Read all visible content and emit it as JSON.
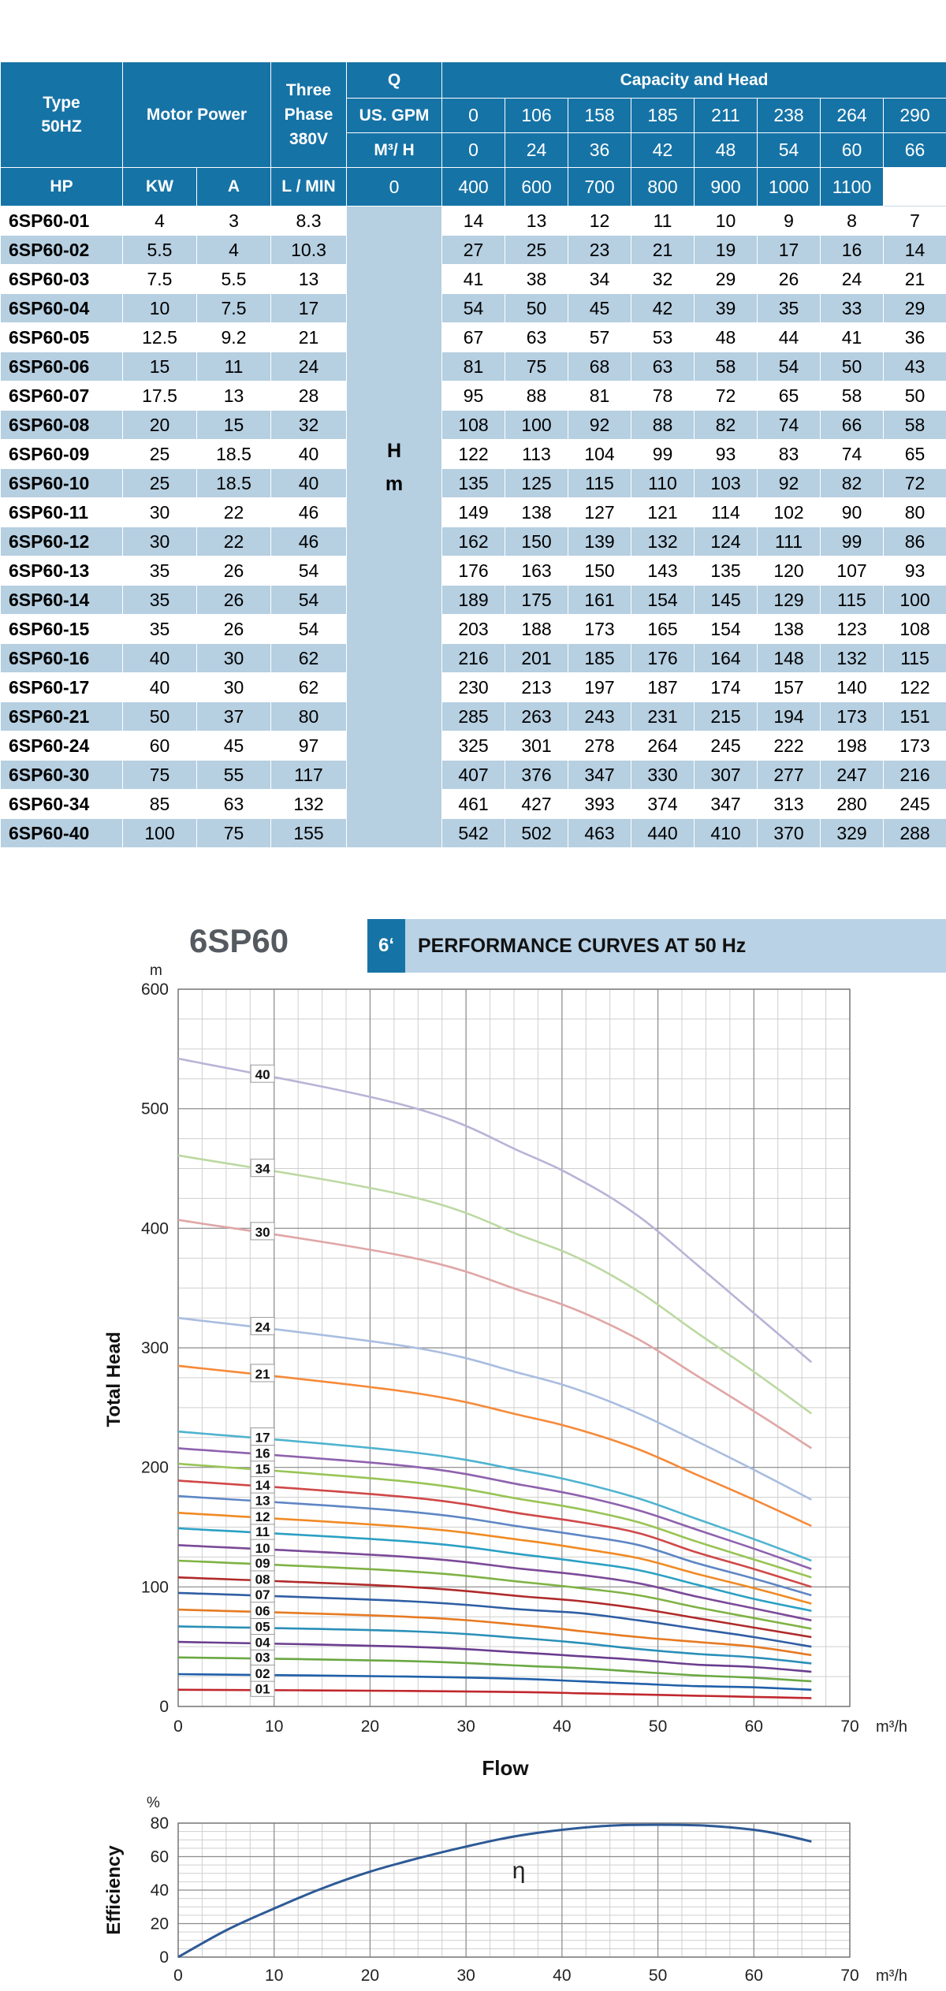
{
  "table": {
    "header": {
      "type": [
        "Type",
        "50HZ"
      ],
      "motor_power": "Motor Power",
      "three_phase": [
        "Three",
        "Phase",
        "380V"
      ],
      "q": "Q",
      "capacity_head": "Capacity and Head",
      "us_gpm_label": "US. GPM",
      "m3h_label": "M³/ H",
      "lmin_label": "L / MIN",
      "hp": "HP",
      "kw": "KW",
      "amp": "A",
      "gpm": [
        "0",
        "106",
        "158",
        "185",
        "211",
        "238",
        "264",
        "290"
      ],
      "m3h": [
        "0",
        "24",
        "36",
        "42",
        "48",
        "54",
        "60",
        "66"
      ],
      "lmin": [
        "0",
        "400",
        "600",
        "700",
        "800",
        "900",
        "1000",
        "1100"
      ]
    },
    "h_label": "H",
    "m_label": "m",
    "rows": [
      {
        "type": "6SP60-01",
        "hp": "4",
        "kw": "3",
        "a": "8.3",
        "head": [
          "14",
          "13",
          "12",
          "11",
          "10",
          "9",
          "8",
          "7"
        ]
      },
      {
        "type": "6SP60-02",
        "hp": "5.5",
        "kw": "4",
        "a": "10.3",
        "head": [
          "27",
          "25",
          "23",
          "21",
          "19",
          "17",
          "16",
          "14"
        ]
      },
      {
        "type": "6SP60-03",
        "hp": "7.5",
        "kw": "5.5",
        "a": "13",
        "head": [
          "41",
          "38",
          "34",
          "32",
          "29",
          "26",
          "24",
          "21"
        ]
      },
      {
        "type": "6SP60-04",
        "hp": "10",
        "kw": "7.5",
        "a": "17",
        "head": [
          "54",
          "50",
          "45",
          "42",
          "39",
          "35",
          "33",
          "29"
        ]
      },
      {
        "type": "6SP60-05",
        "hp": "12.5",
        "kw": "9.2",
        "a": "21",
        "head": [
          "67",
          "63",
          "57",
          "53",
          "48",
          "44",
          "41",
          "36"
        ]
      },
      {
        "type": "6SP60-06",
        "hp": "15",
        "kw": "11",
        "a": "24",
        "head": [
          "81",
          "75",
          "68",
          "63",
          "58",
          "54",
          "50",
          "43"
        ]
      },
      {
        "type": "6SP60-07",
        "hp": "17.5",
        "kw": "13",
        "a": "28",
        "head": [
          "95",
          "88",
          "81",
          "78",
          "72",
          "65",
          "58",
          "50"
        ]
      },
      {
        "type": "6SP60-08",
        "hp": "20",
        "kw": "15",
        "a": "32",
        "head": [
          "108",
          "100",
          "92",
          "88",
          "82",
          "74",
          "66",
          "58"
        ]
      },
      {
        "type": "6SP60-09",
        "hp": "25",
        "kw": "18.5",
        "a": "40",
        "head": [
          "122",
          "113",
          "104",
          "99",
          "93",
          "83",
          "74",
          "65"
        ]
      },
      {
        "type": "6SP60-10",
        "hp": "25",
        "kw": "18.5",
        "a": "40",
        "head": [
          "135",
          "125",
          "115",
          "110",
          "103",
          "92",
          "82",
          "72"
        ]
      },
      {
        "type": "6SP60-11",
        "hp": "30",
        "kw": "22",
        "a": "46",
        "head": [
          "149",
          "138",
          "127",
          "121",
          "114",
          "102",
          "90",
          "80"
        ]
      },
      {
        "type": "6SP60-12",
        "hp": "30",
        "kw": "22",
        "a": "46",
        "head": [
          "162",
          "150",
          "139",
          "132",
          "124",
          "111",
          "99",
          "86"
        ]
      },
      {
        "type": "6SP60-13",
        "hp": "35",
        "kw": "26",
        "a": "54",
        "head": [
          "176",
          "163",
          "150",
          "143",
          "135",
          "120",
          "107",
          "93"
        ]
      },
      {
        "type": "6SP60-14",
        "hp": "35",
        "kw": "26",
        "a": "54",
        "head": [
          "189",
          "175",
          "161",
          "154",
          "145",
          "129",
          "115",
          "100"
        ]
      },
      {
        "type": "6SP60-15",
        "hp": "35",
        "kw": "26",
        "a": "54",
        "head": [
          "203",
          "188",
          "173",
          "165",
          "154",
          "138",
          "123",
          "108"
        ]
      },
      {
        "type": "6SP60-16",
        "hp": "40",
        "kw": "30",
        "a": "62",
        "head": [
          "216",
          "201",
          "185",
          "176",
          "164",
          "148",
          "132",
          "115"
        ]
      },
      {
        "type": "6SP60-17",
        "hp": "40",
        "kw": "30",
        "a": "62",
        "head": [
          "230",
          "213",
          "197",
          "187",
          "174",
          "157",
          "140",
          "122"
        ]
      },
      {
        "type": "6SP60-21",
        "hp": "50",
        "kw": "37",
        "a": "80",
        "head": [
          "285",
          "263",
          "243",
          "231",
          "215",
          "194",
          "173",
          "151"
        ]
      },
      {
        "type": "6SP60-24",
        "hp": "60",
        "kw": "45",
        "a": "97",
        "head": [
          "325",
          "301",
          "278",
          "264",
          "245",
          "222",
          "198",
          "173"
        ]
      },
      {
        "type": "6SP60-30",
        "hp": "75",
        "kw": "55",
        "a": "117",
        "head": [
          "407",
          "376",
          "347",
          "330",
          "307",
          "277",
          "247",
          "216"
        ]
      },
      {
        "type": "6SP60-34",
        "hp": "85",
        "kw": "63",
        "a": "132",
        "head": [
          "461",
          "427",
          "393",
          "374",
          "347",
          "313",
          "280",
          "245"
        ]
      },
      {
        "type": "6SP60-40",
        "hp": "100",
        "kw": "75",
        "a": "155",
        "head": [
          "542",
          "502",
          "463",
          "440",
          "410",
          "370",
          "329",
          "288"
        ]
      }
    ]
  },
  "curves_header": {
    "model": "6SP60",
    "size": "6ʻ",
    "title": "PERFORMANCE CURVES AT 50 Hz"
  },
  "chart_data": [
    {
      "type": "line",
      "ylabel": "Total Head",
      "yunit": "m",
      "xlabel": "Flow",
      "xunit": "m³/h",
      "xlim": [
        0,
        70
      ],
      "ylim": [
        0,
        600
      ],
      "xticks": [
        0,
        10,
        20,
        30,
        40,
        50,
        60,
        70
      ],
      "yticks": [
        0,
        100,
        200,
        300,
        400,
        500,
        600
      ],
      "grid": true,
      "x": [
        0,
        24,
        36,
        42,
        48,
        54,
        60,
        66
      ],
      "series": [
        {
          "name": "01",
          "color": "#c0272d",
          "values": [
            14,
            13,
            12,
            11,
            10,
            9,
            8,
            7
          ]
        },
        {
          "name": "02",
          "color": "#1f5fa8",
          "values": [
            27,
            25,
            23,
            21,
            19,
            17,
            16,
            14
          ]
        },
        {
          "name": "03",
          "color": "#6aa842",
          "values": [
            41,
            38,
            34,
            32,
            29,
            26,
            24,
            21
          ]
        },
        {
          "name": "04",
          "color": "#6a3d8f",
          "values": [
            54,
            50,
            45,
            42,
            39,
            35,
            33,
            29
          ]
        },
        {
          "name": "05",
          "color": "#2a8fb8",
          "values": [
            67,
            63,
            57,
            53,
            48,
            44,
            41,
            36
          ]
        },
        {
          "name": "06",
          "color": "#e67a22",
          "values": [
            81,
            75,
            68,
            63,
            58,
            54,
            50,
            43
          ]
        },
        {
          "name": "07",
          "color": "#2f5ea3",
          "values": [
            95,
            88,
            81,
            78,
            72,
            65,
            58,
            50
          ]
        },
        {
          "name": "08",
          "color": "#b02a2a",
          "values": [
            108,
            100,
            92,
            88,
            82,
            74,
            66,
            58
          ]
        },
        {
          "name": "09",
          "color": "#7fb244",
          "values": [
            122,
            113,
            104,
            99,
            93,
            83,
            74,
            65
          ]
        },
        {
          "name": "10",
          "color": "#7b4a98",
          "values": [
            135,
            125,
            115,
            110,
            103,
            92,
            82,
            72
          ]
        },
        {
          "name": "11",
          "color": "#2ba0c4",
          "values": [
            149,
            138,
            127,
            121,
            114,
            102,
            90,
            80
          ]
        },
        {
          "name": "12",
          "color": "#f08a24",
          "values": [
            162,
            150,
            139,
            132,
            124,
            111,
            99,
            86
          ]
        },
        {
          "name": "13",
          "color": "#5e86c4",
          "values": [
            176,
            163,
            150,
            143,
            135,
            120,
            107,
            93
          ]
        },
        {
          "name": "14",
          "color": "#d04848",
          "values": [
            189,
            175,
            161,
            154,
            145,
            129,
            115,
            100
          ]
        },
        {
          "name": "15",
          "color": "#98c455",
          "values": [
            203,
            188,
            173,
            165,
            154,
            138,
            123,
            108
          ]
        },
        {
          "name": "16",
          "color": "#8e62ad",
          "values": [
            216,
            201,
            185,
            176,
            164,
            148,
            132,
            115
          ]
        },
        {
          "name": "17",
          "color": "#4fb3cf",
          "values": [
            230,
            213,
            197,
            187,
            174,
            157,
            140,
            122
          ]
        },
        {
          "name": "21",
          "color": "#f58a3a",
          "values": [
            285,
            263,
            243,
            231,
            215,
            194,
            173,
            151
          ]
        },
        {
          "name": "24",
          "color": "#a9bde0",
          "values": [
            325,
            301,
            278,
            264,
            245,
            222,
            198,
            173
          ]
        },
        {
          "name": "30",
          "color": "#e0a6a6",
          "values": [
            407,
            376,
            347,
            330,
            307,
            277,
            247,
            216
          ]
        },
        {
          "name": "34",
          "color": "#bcd9a2",
          "values": [
            461,
            427,
            393,
            374,
            347,
            313,
            280,
            245
          ]
        },
        {
          "name": "40",
          "color": "#b9b3d6",
          "values": [
            542,
            502,
            463,
            440,
            410,
            370,
            329,
            288
          ]
        }
      ]
    },
    {
      "type": "line",
      "ylabel": "Efficiency",
      "yunit": "%",
      "xunit": "m³/h",
      "annotation": "η",
      "xlim": [
        0,
        70
      ],
      "ylim": [
        0,
        80
      ],
      "xticks": [
        0,
        10,
        20,
        30,
        40,
        50,
        60,
        70
      ],
      "yticks": [
        0,
        20,
        40,
        60,
        80
      ],
      "grid": true,
      "series": [
        {
          "color": "#2e5a96",
          "x": [
            0,
            5,
            10,
            15,
            20,
            25,
            30,
            35,
            40,
            45,
            50,
            55,
            60,
            63,
            66
          ],
          "values": [
            0,
            16,
            29,
            41,
            51,
            59,
            66,
            72,
            76,
            78.5,
            79,
            78.5,
            76,
            73,
            69
          ]
        }
      ]
    }
  ]
}
